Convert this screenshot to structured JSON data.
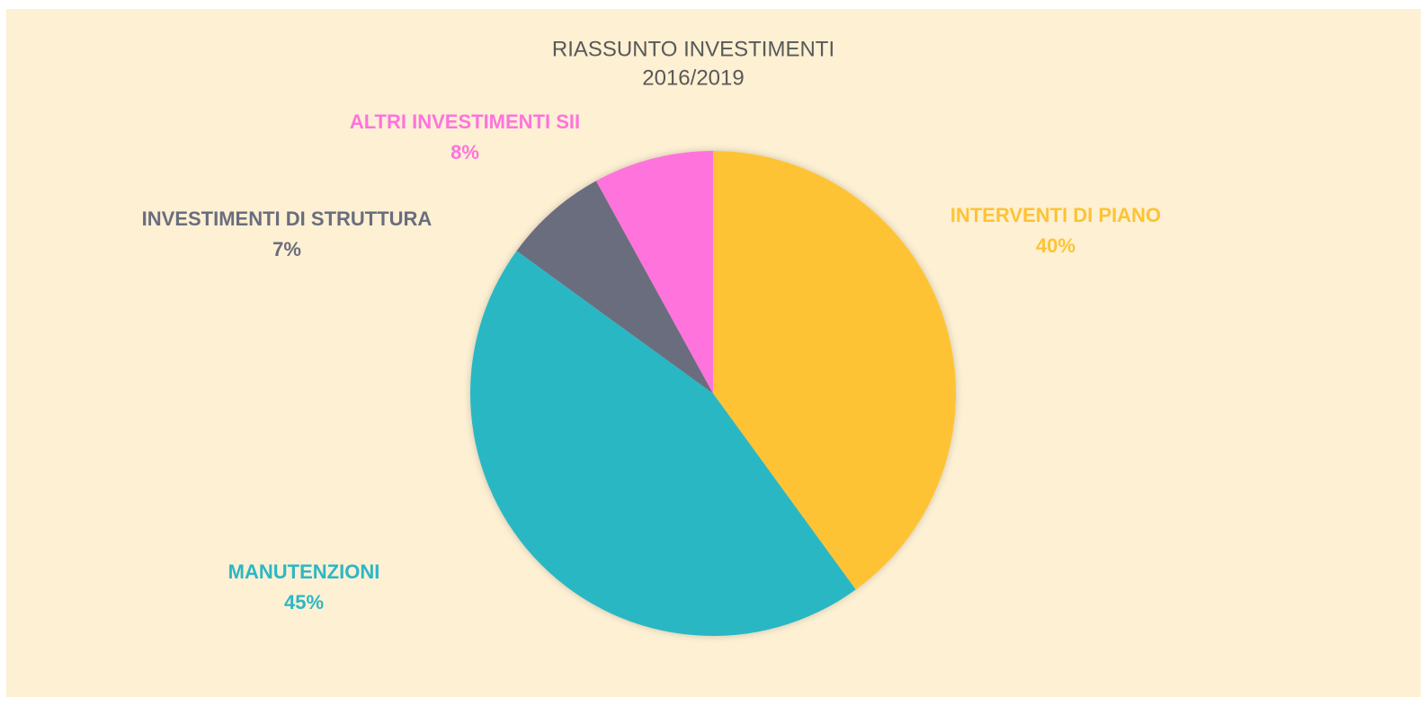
{
  "chart_data": {
    "type": "pie",
    "title": "RIASSUNTO INVESTIMENTI",
    "subtitle": "2016/2019",
    "categories": [
      "INTERVENTI DI PIANO",
      "MANUTENZIONI",
      "INVESTIMENTI DI STRUTTURA",
      "ALTRI INVESTIMENTI SII"
    ],
    "values": [
      40,
      45,
      7,
      8
    ],
    "value_labels": [
      "40%",
      "45%",
      "7%",
      "8%"
    ],
    "colors": [
      "#fec334",
      "#2cb7c4",
      "#6a6d7e",
      "#ff73dc"
    ]
  }
}
